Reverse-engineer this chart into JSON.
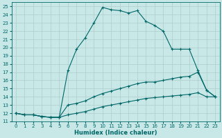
{
  "xlabel": "Humidex (Indice chaleur)",
  "bg_color": "#c8e8e8",
  "grid_color": "#b0cccc",
  "line_color": "#006666",
  "xlim": [
    -0.5,
    23.5
  ],
  "ylim": [
    11,
    25.5
  ],
  "xticks": [
    0,
    1,
    2,
    3,
    4,
    5,
    6,
    7,
    8,
    9,
    10,
    11,
    12,
    13,
    14,
    15,
    16,
    17,
    18,
    19,
    20,
    21,
    22,
    23
  ],
  "yticks": [
    11,
    12,
    13,
    14,
    15,
    16,
    17,
    18,
    19,
    20,
    21,
    22,
    23,
    24,
    25
  ],
  "line1_x": [
    0,
    1,
    2,
    3,
    4,
    5,
    6,
    7,
    8,
    9,
    10,
    11,
    12,
    13,
    14,
    15,
    16,
    17,
    18,
    19,
    20,
    21,
    22,
    23
  ],
  "line1_y": [
    12.0,
    11.8,
    11.8,
    11.6,
    11.5,
    11.5,
    17.2,
    19.8,
    21.2,
    23.0,
    24.9,
    24.6,
    24.5,
    24.2,
    24.5,
    23.2,
    22.7,
    22.0,
    19.8,
    19.8,
    19.8,
    17.2,
    14.8,
    14.0
  ],
  "line2_x": [
    0,
    1,
    2,
    3,
    4,
    5,
    6,
    7,
    8,
    9,
    10,
    11,
    12,
    13,
    14,
    15,
    16,
    17,
    18,
    19,
    20,
    21,
    22,
    23
  ],
  "line2_y": [
    12.0,
    11.8,
    11.8,
    11.6,
    11.5,
    11.5,
    13.0,
    13.2,
    13.5,
    14.0,
    14.4,
    14.7,
    15.0,
    15.3,
    15.6,
    15.8,
    15.8,
    16.0,
    16.2,
    16.4,
    16.5,
    17.0,
    14.8,
    14.0
  ],
  "line3_x": [
    0,
    1,
    2,
    3,
    4,
    5,
    6,
    7,
    8,
    9,
    10,
    11,
    12,
    13,
    14,
    15,
    16,
    17,
    18,
    19,
    20,
    21,
    22,
    23
  ],
  "line3_y": [
    12.0,
    11.8,
    11.8,
    11.6,
    11.5,
    11.5,
    11.8,
    12.0,
    12.2,
    12.5,
    12.8,
    13.0,
    13.2,
    13.4,
    13.6,
    13.8,
    13.9,
    14.0,
    14.1,
    14.2,
    14.3,
    14.5,
    14.0,
    14.0
  ],
  "label_fontsize": 5,
  "xlabel_fontsize": 6
}
